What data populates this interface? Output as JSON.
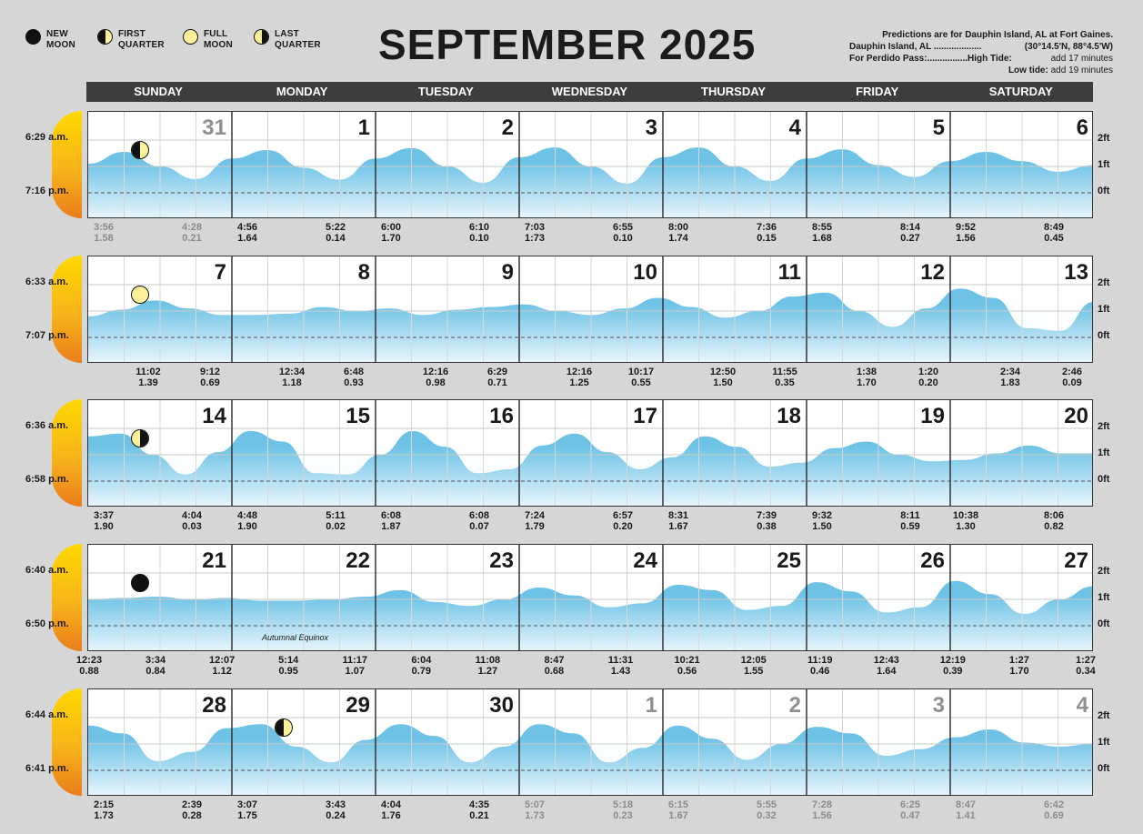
{
  "legend": [
    {
      "phase": "new",
      "line1": "NEW",
      "line2": "MOON",
      "icon": "new-moon-icon"
    },
    {
      "phase": "first",
      "line1": "FIRST",
      "line2": "QUARTER",
      "icon": "first-quarter-moon-icon"
    },
    {
      "phase": "full",
      "line1": "FULL",
      "line2": "MOON",
      "icon": "full-moon-icon"
    },
    {
      "phase": "last",
      "line1": "LAST",
      "line2": "QUARTER",
      "icon": "last-quarter-moon-icon"
    }
  ],
  "title": "SEPTEMBER 2025",
  "info": {
    "line1": "Predictions are for Dauphin Island, AL at Fort Gaines.",
    "line2a": "Dauphin Island, AL ...................",
    "line2b": "(30°14.5'N, 88°4.5'W)",
    "line3a": "For Perdido Pass:................High Tide:",
    "line3b": "add 17 minutes",
    "line4a": "Low tide:",
    "line4b": "add 19 minutes"
  },
  "days": [
    "SUNDAY",
    "MONDAY",
    "TUESDAY",
    "WEDNESDAY",
    "THURSDAY",
    "FRIDAY",
    "SATURDAY"
  ],
  "ft_labels": [
    "2ft",
    "1ft",
    "0ft"
  ],
  "colors": {
    "water_top": "#6dc2e6",
    "water_bottom": "#eaf6fc",
    "day_bar": "#3d3d3d",
    "sun_top": "#ffd800",
    "sun_bottom": "#ea7d1c",
    "dim_text": "#8c8c8c"
  },
  "weeks": [
    {
      "sunrise": "6:29 a.m.",
      "sunset": "7:16 p.m.",
      "dates": [
        {
          "n": "31",
          "dim": true
        },
        {
          "n": "1"
        },
        {
          "n": "2"
        },
        {
          "n": "3"
        },
        {
          "n": "4"
        },
        {
          "n": "5"
        },
        {
          "n": "6"
        }
      ],
      "moon": {
        "phase": "first",
        "day": 0
      },
      "tides": [
        {
          "t": "3:56",
          "h": "1.58",
          "dim": true,
          "type": "high"
        },
        {
          "t": "4:28",
          "h": "0.21",
          "dim": true,
          "type": "low"
        },
        {
          "t": "4:56",
          "h": "1.64",
          "type": "high"
        },
        {
          "t": "5:22",
          "h": "0.14",
          "type": "low"
        },
        {
          "t": "6:00",
          "h": "1.70",
          "type": "high"
        },
        {
          "t": "6:10",
          "h": "0.10",
          "type": "low"
        },
        {
          "t": "7:03",
          "h": "1:73",
          "type": "high"
        },
        {
          "t": "6:55",
          "h": "0.10",
          "type": "low"
        },
        {
          "t": "8:00",
          "h": "1.74",
          "type": "high"
        },
        {
          "t": "7:36",
          "h": "0.15",
          "type": "low"
        },
        {
          "t": "8:55",
          "h": "1.68",
          "type": "high"
        },
        {
          "t": "8:14",
          "h": "0.27",
          "type": "low"
        },
        {
          "t": "9:52",
          "h": "1.56",
          "type": "high"
        },
        {
          "t": "8:49",
          "h": "0.45",
          "type": "low"
        }
      ],
      "wave": [
        1.1,
        1.55,
        1.0,
        0.52,
        1.3,
        1.62,
        0.95,
        0.5,
        1.3,
        1.7,
        1.0,
        0.38,
        1.35,
        1.72,
        1.0,
        0.35,
        1.35,
        1.72,
        1.0,
        0.45,
        1.3,
        1.65,
        1.05,
        0.6,
        1.2,
        1.55,
        1.2,
        0.8,
        1.05
      ]
    },
    {
      "sunrise": "6:33 a.m.",
      "sunset": "7:07 p.m.",
      "dates": [
        {
          "n": "7"
        },
        {
          "n": "8"
        },
        {
          "n": "9"
        },
        {
          "n": "10"
        },
        {
          "n": "11"
        },
        {
          "n": "12"
        },
        {
          "n": "13"
        }
      ],
      "moon": {
        "phase": "full",
        "day": 0
      },
      "tides": [
        {
          "t": "11:02",
          "h": "1.39",
          "type": "high"
        },
        {
          "t": "9:12",
          "h": "0.69",
          "type": "low"
        },
        {
          "t": "12:34",
          "h": "1.18",
          "type": "high"
        },
        {
          "t": "6:48",
          "h": "0.93",
          "type": "low"
        },
        {
          "t": "12:16",
          "h": "0.98",
          "type": "high"
        },
        {
          "t": "6:29",
          "h": "0.71",
          "type": "low"
        },
        {
          "t": "12:16",
          "h": "1.25",
          "type": "high"
        },
        {
          "t": "10:17",
          "h": "0.55",
          "type": "low"
        },
        {
          "t": "12:50",
          "h": "1.50",
          "type": "high"
        },
        {
          "t": "11:55",
          "h": "0.35",
          "type": "low"
        },
        {
          "t": "1:38",
          "h": "1.70",
          "type": "high"
        },
        {
          "t": "1:20",
          "h": "0.20",
          "type": "low"
        },
        {
          "t": "2:34",
          "h": "1.83",
          "type": "high"
        },
        {
          "t": "2:46",
          "h": "0.09",
          "type": "low"
        }
      ],
      "wave": [
        0.8,
        1.05,
        1.4,
        1.1,
        0.85,
        0.85,
        0.9,
        1.15,
        1.0,
        1.1,
        0.85,
        1.05,
        1.15,
        1.25,
        1.0,
        0.85,
        1.1,
        1.5,
        1.15,
        0.75,
        1.0,
        1.55,
        1.7,
        1.0,
        0.4,
        1.1,
        1.85,
        1.5,
        0.35,
        0.25,
        1.35
      ]
    },
    {
      "sunrise": "6:36 a.m.",
      "sunset": "6:58 p.m.",
      "dates": [
        {
          "n": "14"
        },
        {
          "n": "15"
        },
        {
          "n": "16"
        },
        {
          "n": "17"
        },
        {
          "n": "18"
        },
        {
          "n": "19"
        },
        {
          "n": "20"
        }
      ],
      "moon": {
        "phase": "last",
        "day": 0
      },
      "tides": [
        {
          "t": "3:37",
          "h": "1.90",
          "type": "high"
        },
        {
          "t": "4:04",
          "h": "0.03",
          "type": "low"
        },
        {
          "t": "4:48",
          "h": "1.90",
          "type": "high"
        },
        {
          "t": "5:11",
          "h": "0.02",
          "type": "low"
        },
        {
          "t": "6:08",
          "h": "1.87",
          "type": "high"
        },
        {
          "t": "6:08",
          "h": "0.07",
          "type": "low"
        },
        {
          "t": "7:24",
          "h": "1.79",
          "type": "high"
        },
        {
          "t": "6:57",
          "h": "0.20",
          "type": "low"
        },
        {
          "t": "8:31",
          "h": "1.67",
          "type": "high"
        },
        {
          "t": "7:39",
          "h": "0.38",
          "type": "low"
        },
        {
          "t": "9:32",
          "h": "1.50",
          "type": "high"
        },
        {
          "t": "8:11",
          "h": "0.59",
          "type": "low"
        },
        {
          "t": "10:38",
          "h": "1.30",
          "type": "high"
        },
        {
          "t": "8:06",
          "h": "0.82",
          "type": "low"
        }
      ],
      "wave": [
        1.7,
        1.8,
        1.0,
        0.25,
        1.1,
        1.9,
        1.5,
        0.3,
        0.25,
        1.0,
        1.9,
        1.3,
        0.3,
        0.45,
        1.35,
        1.8,
        1.1,
        0.45,
        0.9,
        1.7,
        1.3,
        0.55,
        0.7,
        1.25,
        1.5,
        1.0,
        0.75,
        0.8,
        1.05,
        1.35,
        1.05,
        1.05
      ]
    },
    {
      "sunrise": "6:40 a.m.",
      "sunset": "6:50 p.m.",
      "dates": [
        {
          "n": "21"
        },
        {
          "n": "22"
        },
        {
          "n": "23"
        },
        {
          "n": "24"
        },
        {
          "n": "25"
        },
        {
          "n": "26"
        },
        {
          "n": "27"
        }
      ],
      "moon": {
        "phase": "new",
        "day": 0
      },
      "equinox": "Autumnal Equinox",
      "tides": [
        {
          "t": "12:23",
          "h": "0.88"
        },
        {
          "t": "3:34",
          "h": "0.84"
        },
        {
          "t": "12:07",
          "h": "1.12"
        },
        {
          "t": "5:14",
          "h": "0.95"
        },
        {
          "t": "11:17",
          "h": "1.07"
        },
        {
          "t": "6:04",
          "h": "0.79"
        },
        {
          "t": "11:08",
          "h": "1.27"
        },
        {
          "t": "8:47",
          "h": "0.68"
        },
        {
          "t": "11:31",
          "h": "1.43"
        },
        {
          "t": "10:21",
          "h": "0.56"
        },
        {
          "t": "12:05",
          "h": "1.55"
        },
        {
          "t": "11:19",
          "h": "0.46"
        },
        {
          "t": "12:43",
          "h": "1.64"
        },
        {
          "t": "12:19",
          "h": "0.39"
        },
        {
          "t": "1:27",
          "h": "1.70"
        },
        {
          "t": "1:27",
          "h": "0.34"
        }
      ],
      "wave": [
        1.0,
        1.05,
        1.1,
        1.0,
        1.05,
        0.95,
        0.95,
        1.0,
        1.1,
        1.35,
        0.9,
        0.75,
        1.0,
        1.45,
        1.15,
        0.7,
        0.85,
        1.55,
        1.35,
        0.6,
        0.75,
        1.65,
        1.3,
        0.5,
        0.7,
        1.7,
        1.2,
        0.45,
        1.0,
        1.5
      ]
    },
    {
      "sunrise": "6:44 a.m.",
      "sunset": "6:41 p.m.",
      "dates": [
        {
          "n": "28"
        },
        {
          "n": "29"
        },
        {
          "n": "30"
        },
        {
          "n": "1",
          "dim": true
        },
        {
          "n": "2",
          "dim": true
        },
        {
          "n": "3",
          "dim": true
        },
        {
          "n": "4",
          "dim": true
        }
      ],
      "moon": {
        "phase": "first",
        "day": 1
      },
      "tides": [
        {
          "t": "2:15",
          "h": "1.73",
          "type": "high"
        },
        {
          "t": "2:39",
          "h": "0.28",
          "type": "low"
        },
        {
          "t": "3:07",
          "h": "1.75",
          "type": "high"
        },
        {
          "t": "3:43",
          "h": "0.24",
          "type": "low"
        },
        {
          "t": "4:04",
          "h": "1.76",
          "type": "high"
        },
        {
          "t": "4:35",
          "h": "0.21",
          "type": "low"
        },
        {
          "t": "5:07",
          "h": "1.73",
          "dim": true,
          "type": "high"
        },
        {
          "t": "5:18",
          "h": "0.23",
          "dim": true,
          "type": "low"
        },
        {
          "t": "6:15",
          "h": "1.67",
          "dim": true,
          "type": "high"
        },
        {
          "t": "5:55",
          "h": "0.32",
          "dim": true,
          "type": "low"
        },
        {
          "t": "7:28",
          "h": "1.56",
          "dim": true,
          "type": "high"
        },
        {
          "t": "6:25",
          "h": "0.47",
          "dim": true,
          "type": "low"
        },
        {
          "t": "8:47",
          "h": "1.41",
          "dim": true,
          "type": "high"
        },
        {
          "t": "6:42",
          "h": "0.69",
          "dim": true,
          "type": "low"
        }
      ],
      "wave": [
        1.7,
        1.4,
        0.35,
        0.7,
        1.6,
        1.75,
        0.9,
        0.3,
        1.15,
        1.75,
        1.3,
        0.3,
        0.9,
        1.75,
        1.4,
        0.3,
        0.85,
        1.7,
        1.2,
        0.4,
        1.0,
        1.65,
        1.4,
        0.55,
        0.8,
        1.25,
        1.55,
        1.05,
        0.9,
        1.0
      ]
    }
  ]
}
